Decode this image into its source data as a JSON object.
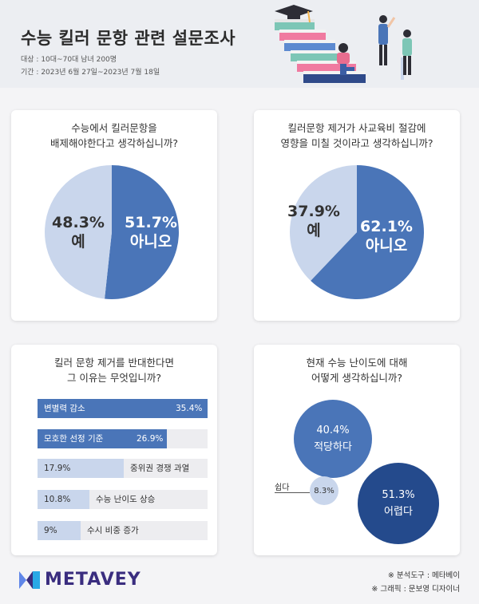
{
  "header": {
    "title": "수능 킬러 문항 관련 설문조사",
    "target": "대상 : 10대~70대 남녀 200명",
    "period": "기간 : 2023년 6월 27일~2023년 7월 18일"
  },
  "colors": {
    "primary": "#4a75b8",
    "light": "#c9d6ec",
    "dark": "#244a8c",
    "track": "#ededf0"
  },
  "chart_data": [
    {
      "type": "pie",
      "title_lines": [
        "수능에서 킬러문항을",
        "배제해야한다고 생각하십니까?"
      ],
      "categories": [
        "아니오",
        "예"
      ],
      "values": [
        51.7,
        48.3
      ],
      "value_labels": [
        "51.7%",
        "48.3%"
      ]
    },
    {
      "type": "pie",
      "title_lines": [
        "킬러문항 제거가 사교육비 절감에",
        "영향을 미칠 것이라고 생각하십니까?"
      ],
      "categories": [
        "아니오",
        "예"
      ],
      "values": [
        62.1,
        37.9
      ],
      "value_labels": [
        "62.1%",
        "37.9%"
      ]
    },
    {
      "type": "bar",
      "title_lines": [
        "킬러 문항 제거를 반대한다면",
        "그 이유는 무엇입니까?"
      ],
      "categories": [
        "변별력 감소",
        "모호한 선정 기준",
        "중위권 경쟁 과열",
        "수능 난이도 상승",
        "수시 비중 증가"
      ],
      "values": [
        35.4,
        26.9,
        17.9,
        10.8,
        9
      ],
      "value_labels": [
        "35.4%",
        "26.9%",
        "17.9%",
        "10.8%",
        "9%"
      ]
    },
    {
      "type": "bubble",
      "title_lines": [
        "현재 수능 난이도에 대해",
        "어떻게 생각하십니까?"
      ],
      "categories": [
        "적당하다",
        "어렵다",
        "쉽다"
      ],
      "values": [
        40.4,
        51.3,
        8.3
      ],
      "value_labels": [
        "40.4%",
        "51.3%",
        "8.3%"
      ]
    }
  ],
  "footer": {
    "logo": "METAVEY",
    "credit_tool": "※ 분석도구 : 메타베이",
    "credit_graphic": "※ 그래픽 : 문보영 디자이너"
  }
}
